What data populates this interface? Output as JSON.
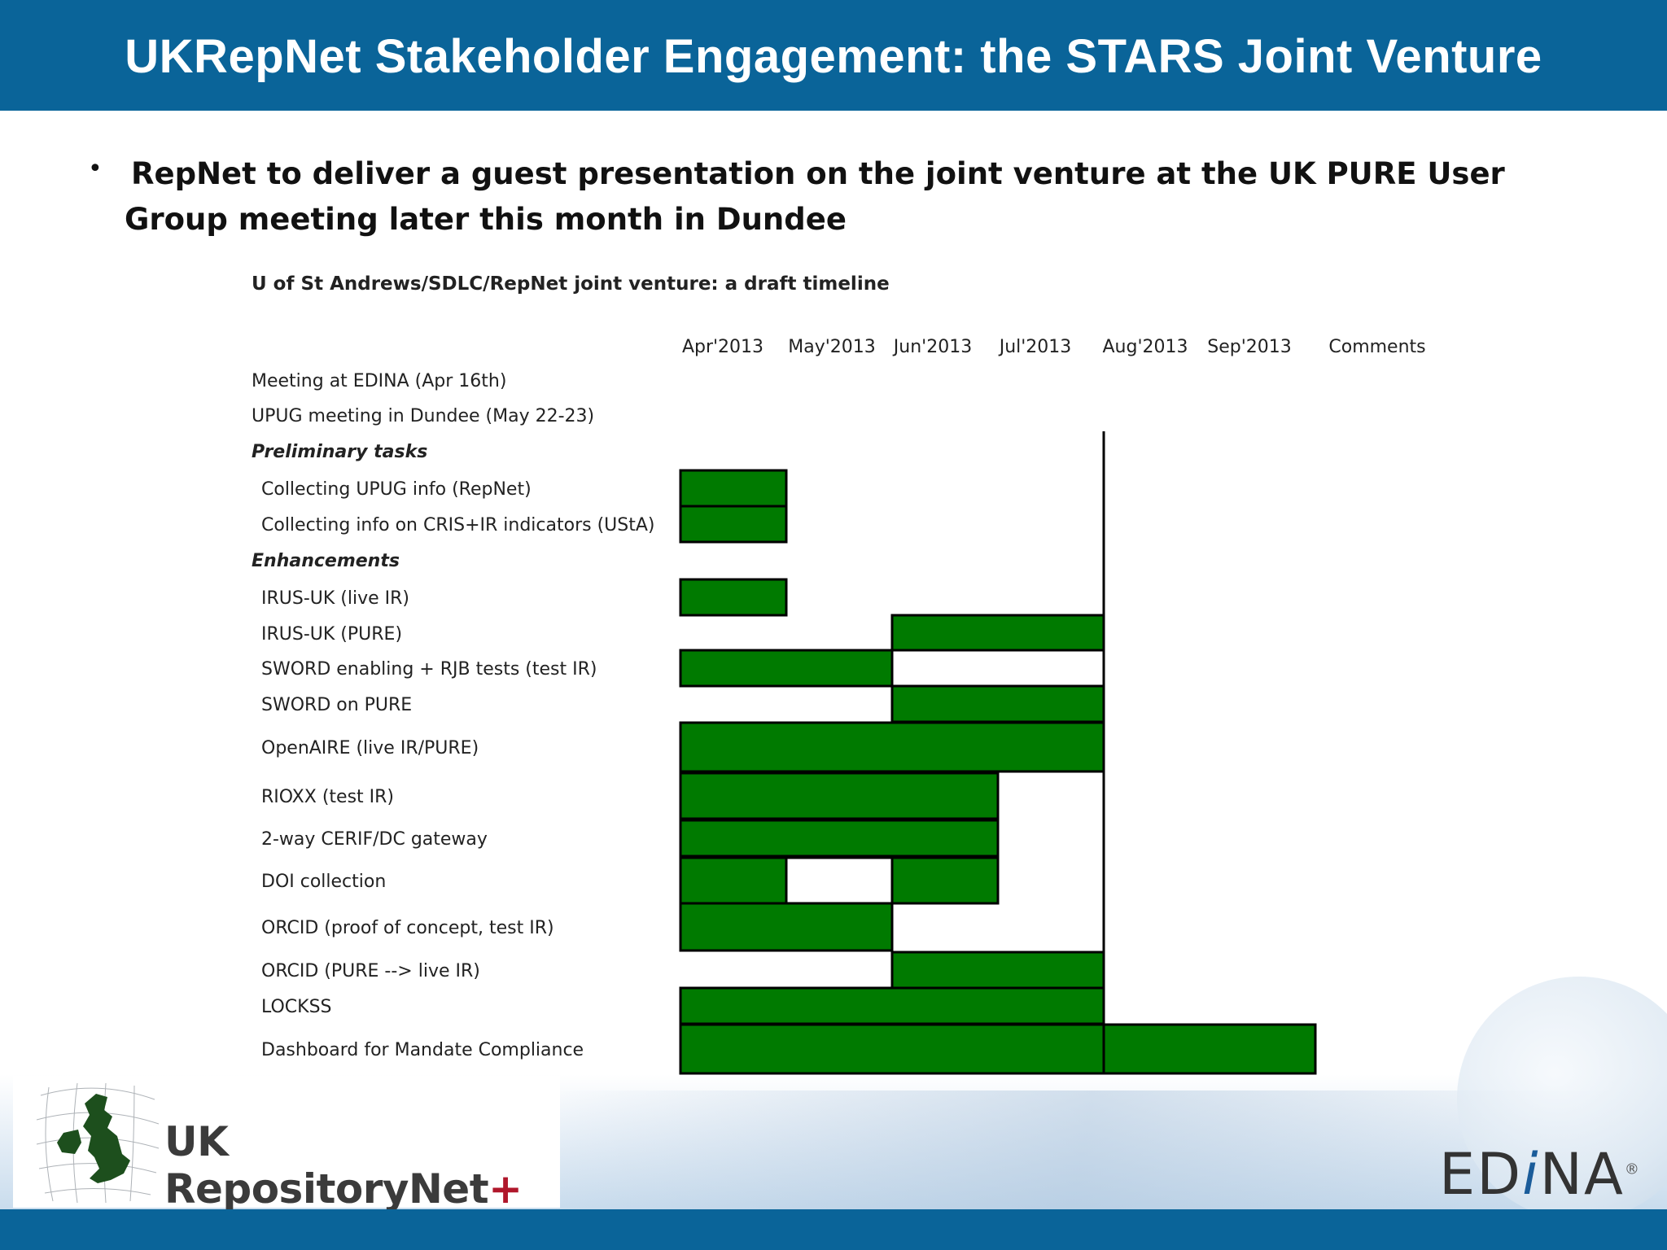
{
  "header": {
    "title": "UKRepNet Stakeholder Engagement: the STARS Joint Venture"
  },
  "body": {
    "bullet_symbol": "•",
    "bullet_text": "RepNet to deliver a guest presentation on the joint venture at the UK PURE User Group meeting later this month in Dundee"
  },
  "footer": {
    "repositorynet_logo_text": "UK RepositoryNet",
    "repositorynet_logo_plus": "+",
    "edina_logo": {
      "part1": "ED",
      "part2": "i",
      "part3": "NA",
      "reg": "®"
    }
  },
  "colors": {
    "header_blue": "#0a6499",
    "bar_green": "#007a00",
    "logo_plus_red": "#b0172b"
  },
  "icons": [
    "uk-map-logo-icon",
    "globe-graphic"
  ],
  "chart_data": {
    "type": "gantt",
    "title": "U of St Andrews/SDLC/RepNet joint venture: a draft timeline",
    "columns": [
      "Apr'2013",
      "May'2013",
      "Jun'2013",
      "Jul'2013",
      "Aug'2013",
      "Sep'2013",
      "Comments"
    ],
    "marker_line": {
      "at_month_start": "Aug'2013"
    },
    "rows": [
      {
        "label": "Meeting at EDINA (Apr 16th)",
        "kind": "item",
        "bars": []
      },
      {
        "label": "UPUG meeting in Dundee (May 22-23)",
        "kind": "item",
        "bars": []
      },
      {
        "label": "Preliminary tasks",
        "kind": "section",
        "bars": []
      },
      {
        "label": "Collecting UPUG info (RepNet)",
        "kind": "task",
        "bars": [
          {
            "start": "Apr'2013",
            "end": "Apr'2013",
            "filled": true
          }
        ]
      },
      {
        "label": "Collecting info on CRIS+IR indicators (UStA)",
        "kind": "task",
        "bars": [
          {
            "start": "Apr'2013",
            "end": "Apr'2013",
            "filled": true
          }
        ]
      },
      {
        "label": "Enhancements",
        "kind": "section",
        "bars": []
      },
      {
        "label": "IRUS-UK (live IR)",
        "kind": "task",
        "bars": [
          {
            "start": "Apr'2013",
            "end": "Apr'2013",
            "filled": true
          }
        ]
      },
      {
        "label": "IRUS-UK (PURE)",
        "kind": "task",
        "bars": [
          {
            "start": "Jun'2013",
            "end": "Jul'2013",
            "filled": true
          }
        ]
      },
      {
        "label": "SWORD enabling + RJB tests (test IR)",
        "kind": "task",
        "bars": [
          {
            "start": "Apr'2013",
            "end": "May'2013",
            "filled": true
          },
          {
            "start": "Jun'2013",
            "end": "Jul'2013",
            "filled": false
          }
        ]
      },
      {
        "label": "SWORD on PURE",
        "kind": "task",
        "bars": [
          {
            "start": "Jun'2013",
            "end": "Jul'2013",
            "filled": true
          }
        ]
      },
      {
        "label": "OpenAIRE (live IR/PURE)",
        "kind": "task",
        "bars": [
          {
            "start": "Apr'2013",
            "end": "Jul'2013",
            "filled": true
          }
        ]
      },
      {
        "label": "RIOXX (test IR)",
        "kind": "task",
        "bars": [
          {
            "start": "Apr'2013",
            "end": "Jun'2013",
            "filled": true
          }
        ]
      },
      {
        "label": "2-way CERIF/DC gateway",
        "kind": "task",
        "bars": [
          {
            "start": "Apr'2013",
            "end": "Jun'2013",
            "filled": true
          }
        ]
      },
      {
        "label": "DOI collection",
        "kind": "task",
        "bars": [
          {
            "start": "Apr'2013",
            "end": "Apr'2013",
            "filled": true
          },
          {
            "start": "May'2013",
            "end": "May'2013",
            "filled": false
          },
          {
            "start": "Jun'2013",
            "end": "Jun'2013",
            "filled": true
          }
        ]
      },
      {
        "label": "ORCID (proof of concept, test IR)",
        "kind": "task",
        "bars": [
          {
            "start": "Apr'2013",
            "end": "May'2013",
            "filled": true
          }
        ]
      },
      {
        "label": "ORCID (PURE --> live IR)",
        "kind": "task",
        "bars": [
          {
            "start": "Jun'2013",
            "end": "Jul'2013",
            "filled": true
          }
        ]
      },
      {
        "label": "LOCKSS",
        "kind": "task",
        "bars": [
          {
            "start": "Apr'2013",
            "end": "Jul'2013",
            "filled": true
          }
        ]
      },
      {
        "label": "Dashboard for Mandate Compliance",
        "kind": "task",
        "bars": [
          {
            "start": "Apr'2013",
            "end": "Jul'2013",
            "filled": true
          },
          {
            "start": "Aug'2013",
            "end": "Sep'2013",
            "filled": true
          }
        ]
      }
    ]
  }
}
